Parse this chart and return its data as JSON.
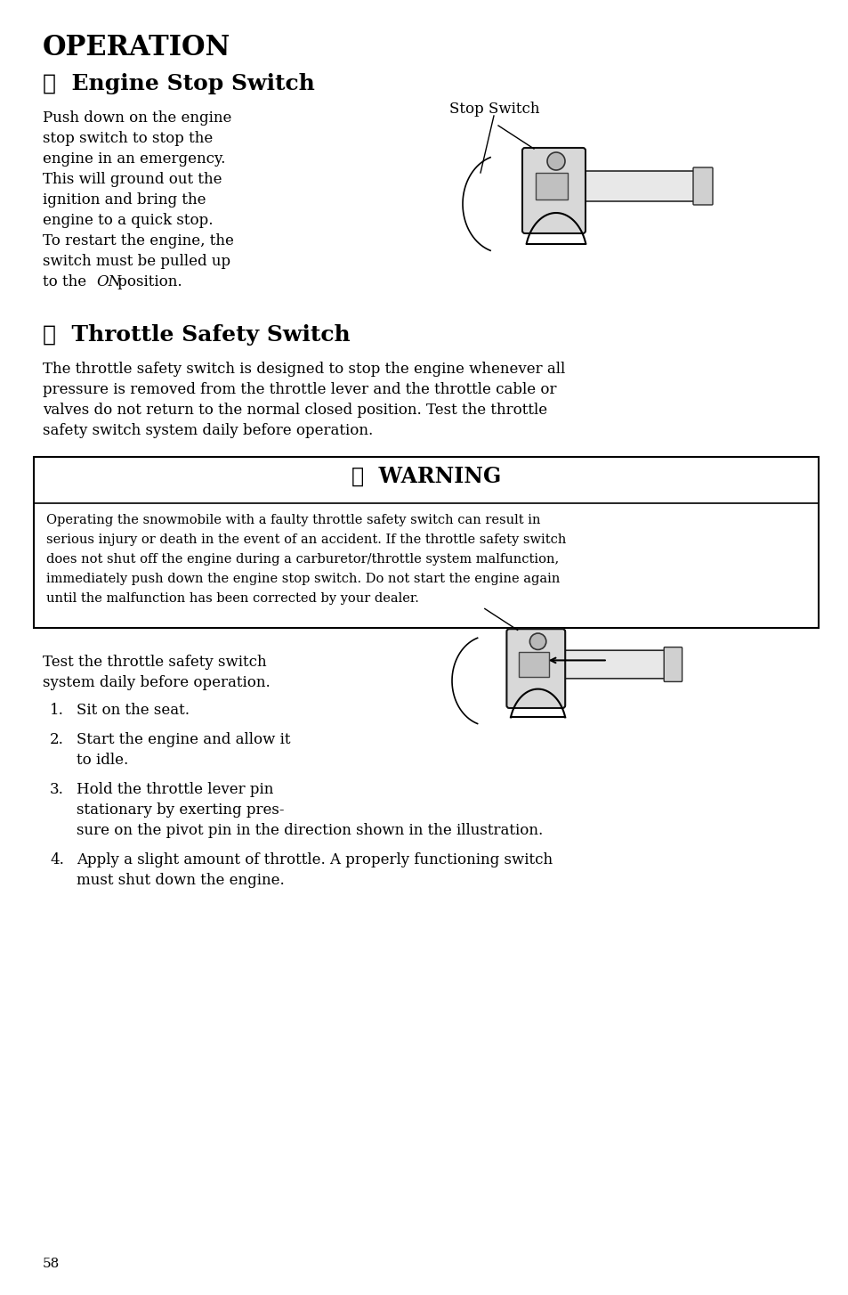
{
  "bg_color": "#ffffff",
  "font_color": "#000000",
  "page_number": "58",
  "title": "OPERATION",
  "h1_prefix": "✔  ",
  "h1": "Engine Stop Switch",
  "para1_lines": [
    "Push down on the engine",
    "stop switch to stop the",
    "engine in an emergency.",
    "This will ground out the",
    "ignition and bring the",
    "engine to a quick stop.",
    "To restart the engine, the",
    "switch must be pulled up",
    "to the "
  ],
  "para1_on": "ON",
  "para1_end": " position.",
  "img1_label": "Stop Switch",
  "h2_prefix": "✔  ",
  "h2": "Throttle Safety Switch",
  "para2_lines": [
    "The throttle safety switch is designed to stop the engine whenever all",
    "pressure is removed from the throttle lever and the throttle cable or",
    "valves do not return to the normal closed position. Test the throttle",
    "safety switch system daily before operation."
  ],
  "warn_title": "⚠  WARNING",
  "warn_body_lines": [
    "Operating the snowmobile with a faulty throttle safety switch can result in",
    "serious injury or death in the event of an accident. If the throttle safety switch",
    "does not shut off the engine during a carburetor/throttle system malfunction,",
    "immediately push down the engine stop switch. Do not start the engine again",
    "until the malfunction has been corrected by your dealer."
  ],
  "test_intro_lines": [
    "Test the throttle safety switch",
    "system daily before operation."
  ],
  "steps": [
    [
      "Sit on the seat."
    ],
    [
      "Start the engine and allow it",
      "to idle."
    ],
    [
      "Hold the throttle lever pin",
      "stationary by exerting pres-",
      "sure on the pivot pin in the direction shown in the illustration."
    ],
    [
      "Apply a slight amount of throttle. A properly functioning switch",
      "must shut down the engine."
    ]
  ]
}
